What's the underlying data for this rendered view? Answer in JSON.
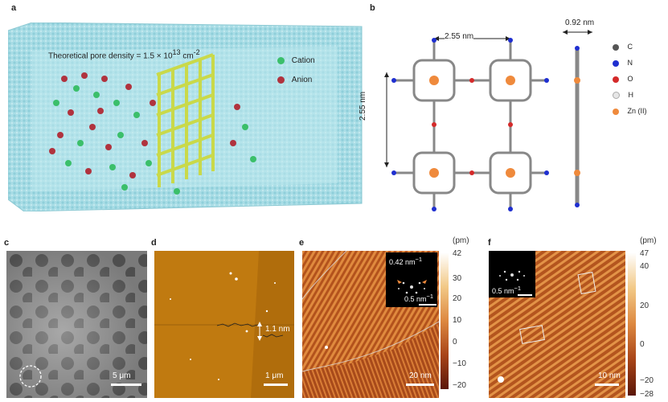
{
  "panels": {
    "a": {
      "label": "a",
      "pore_density_text": "Theoretical pore density = 1.5 × 10",
      "pore_density_exp": "13",
      "pore_density_unit": " cm",
      "pore_density_unit_exp": "-2",
      "legend": [
        {
          "name": "Cation",
          "color": "#3bbf6a"
        },
        {
          "name": "Anion",
          "color": "#b0333e"
        }
      ]
    },
    "b": {
      "label": "b",
      "width_dim": "2.55 nm",
      "height_dim": "2.55 nm",
      "thickness_dim": "0.92 nm",
      "atoms": [
        {
          "symbol": "C",
          "color": "#555555"
        },
        {
          "symbol": "N",
          "color": "#1f2fd0"
        },
        {
          "symbol": "O",
          "color": "#d42a2a"
        },
        {
          "symbol": "H",
          "color": "#e6e6e6"
        },
        {
          "symbol": "Zn (II)",
          "color": "#ef8a3c"
        }
      ]
    },
    "c": {
      "label": "c",
      "scale": "5 μm"
    },
    "d": {
      "label": "d",
      "scale": "1 μm",
      "height": "1.1 nm"
    },
    "e": {
      "label": "e",
      "scale": "20 nm",
      "inset_spacing": "0.42 nm",
      "inset_spacing_exp": "−1",
      "inset_scale": "0.5 nm",
      "inset_scale_exp": "−1",
      "colorbar_unit": "(pm)",
      "colorbar_ticks": [
        "42",
        "30",
        "20",
        "10",
        "0",
        "−10",
        "−20"
      ]
    },
    "f": {
      "label": "f",
      "scale": "10 nm",
      "inset_scale": "0.5 nm",
      "inset_scale_exp": "−1",
      "colorbar_unit": "(pm)",
      "colorbar_ticks": [
        "47",
        "40",
        "20",
        "0",
        "−20",
        "−28"
      ]
    }
  }
}
